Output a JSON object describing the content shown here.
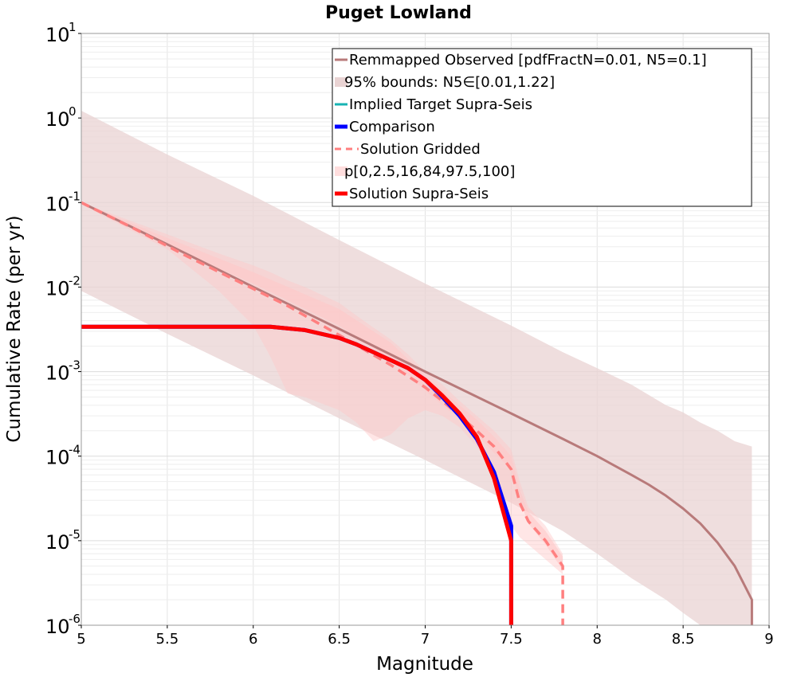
{
  "chart_data": {
    "type": "line",
    "title": "Puget Lowland",
    "xlabel": "Magnitude",
    "ylabel": "Cumulative Rate (per yr)",
    "xlim": [
      5,
      9
    ],
    "ylim": [
      1e-06,
      10
    ],
    "yscale": "log",
    "grid": true,
    "legend_position": "top-right",
    "x_ticks": [
      "5",
      "5.5",
      "6",
      "6.5",
      "7",
      "7.5",
      "8",
      "8.5",
      "9"
    ],
    "y_ticks": [
      {
        "base": "10",
        "exp": "-6"
      },
      {
        "base": "10",
        "exp": "-5"
      },
      {
        "base": "10",
        "exp": "-4"
      },
      {
        "base": "10",
        "exp": "-3"
      },
      {
        "base": "10",
        "exp": "-2"
      },
      {
        "base": "10",
        "exp": "-1"
      },
      {
        "base": "10",
        "exp": "0"
      },
      {
        "base": "10",
        "exp": "1"
      }
    ],
    "colors": {
      "observed": "#b87a7a",
      "bounds_fill": "#e9d3d3",
      "implied": "#17b3b3",
      "comparison": "#0000ff",
      "gridded": "#ff7f7f",
      "percentile_fill": "#ffc8c8",
      "supra": "#ff0000"
    },
    "legend": [
      {
        "key": "observed",
        "label": "Remmapped Observed [pdfFractN=0.01, N5=0.1]",
        "style": "line"
      },
      {
        "key": "bounds",
        "label": "95% bounds: N5∈[0.01,1.22]",
        "style": "fill"
      },
      {
        "key": "implied",
        "label": "Implied Target Supra-Seis",
        "style": "line"
      },
      {
        "key": "comparison",
        "label": "Comparison",
        "style": "thickline"
      },
      {
        "key": "gridded",
        "label": "Solution Gridded",
        "style": "dashed"
      },
      {
        "key": "percentiles",
        "label": "p[0,2.5,16,84,97.5,100]",
        "style": "fill"
      },
      {
        "key": "supra",
        "label": "Solution Supra-Seis",
        "style": "thickline"
      }
    ],
    "bounds_band": {
      "x": [
        5.0,
        5.5,
        6.0,
        6.5,
        7.0,
        7.5,
        7.8,
        8.0,
        8.2,
        8.4,
        8.5,
        8.6,
        8.7,
        8.8,
        8.9,
        8.9
      ],
      "upper": [
        1.22,
        0.37,
        0.12,
        0.036,
        0.011,
        0.0035,
        0.0017,
        0.0011,
        0.0007,
        0.0004,
        0.00033,
        0.00025,
        0.0002,
        0.00015,
        0.00013,
        1e-06
      ],
      "lower": [
        0.009,
        0.0028,
        0.0009,
        0.00028,
        9e-05,
        2.8e-05,
        1.3e-05,
        7e-06,
        3.6e-06,
        2e-06,
        1.4e-06,
        1e-06,
        1e-06,
        1e-06,
        1e-06,
        1e-06
      ]
    },
    "percentile_outer": {
      "x": [
        5.0,
        5.5,
        5.8,
        6.0,
        6.1,
        6.2,
        6.3,
        6.5,
        6.6,
        6.7,
        6.8,
        6.9,
        7.0,
        7.1,
        7.2,
        7.3,
        7.4,
        7.5,
        7.55,
        7.6,
        7.7,
        7.8
      ],
      "upper": [
        0.1,
        0.042,
        0.025,
        0.018,
        0.015,
        0.012,
        0.01,
        0.0065,
        0.0046,
        0.0033,
        0.0024,
        0.0016,
        0.001,
        0.0007,
        0.00045,
        0.0003,
        0.0002,
        0.00012,
        5e-05,
        2.5e-05,
        1.5e-05,
        7e-06
      ],
      "lower": [
        0.095,
        0.028,
        0.009,
        0.0035,
        0.0015,
        0.00055,
        0.0005,
        0.00035,
        0.00025,
        0.00015,
        0.00018,
        0.00028,
        0.00035,
        0.0003,
        0.00022,
        0.00013,
        6e-05,
        1.5e-05,
        1.1e-05,
        9e-06,
        6e-06,
        4e-06
      ]
    },
    "percentile_inner": {
      "x": [
        5.0,
        5.5,
        6.0,
        6.5,
        6.8,
        7.0,
        7.1,
        7.2,
        7.3,
        7.4,
        7.5,
        7.55,
        7.6,
        7.7,
        7.8
      ],
      "upper": [
        0.1,
        0.038,
        0.015,
        0.0055,
        0.0022,
        0.0009,
        0.0006,
        0.0004,
        0.00027,
        0.00017,
        0.0001,
        4e-05,
        2.2e-05,
        1.3e-05,
        6.5e-06
      ],
      "lower": [
        0.097,
        0.03,
        0.011,
        0.0035,
        0.0014,
        0.0006,
        0.0004,
        0.00027,
        0.00018,
        0.00011,
        7e-05,
        3e-05,
        1.6e-05,
        9e-06,
        4.5e-06
      ]
    },
    "series": [
      {
        "key": "observed",
        "name": "Remmapped Observed [pdfFractN=0.01, N5=0.1]",
        "x": [
          5.0,
          5.5,
          6.0,
          6.5,
          7.0,
          7.5,
          7.8,
          8.0,
          8.2,
          8.3,
          8.4,
          8.5,
          8.6,
          8.7,
          8.8,
          8.9,
          8.9
        ],
        "y": [
          0.1,
          0.032,
          0.01,
          0.0032,
          0.001,
          0.00032,
          0.00016,
          0.0001,
          6e-05,
          4.6e-05,
          3.4e-05,
          2.4e-05,
          1.6e-05,
          9.5e-06,
          5e-06,
          2e-06,
          1e-06
        ]
      },
      {
        "key": "gridded",
        "name": "Solution Gridded",
        "x": [
          5.0,
          5.3,
          5.6,
          5.9,
          6.2,
          6.5,
          6.8,
          7.0,
          7.1,
          7.2,
          7.3,
          7.4,
          7.5,
          7.55,
          7.6,
          7.7,
          7.8,
          7.8
        ],
        "y": [
          0.1,
          0.05,
          0.024,
          0.012,
          0.006,
          0.0027,
          0.0012,
          0.00065,
          0.00045,
          0.0003,
          0.0002,
          0.00013,
          7e-05,
          2.8e-05,
          1.7e-05,
          1e-05,
          5e-06,
          1e-06
        ]
      },
      {
        "key": "comparison",
        "name": "Comparison",
        "x": [
          5.0,
          6.1,
          6.3,
          6.5,
          6.6,
          6.9,
          7.0,
          7.1,
          7.2,
          7.3,
          7.4,
          7.5,
          7.5
        ],
        "y": [
          0.0034,
          0.0034,
          0.0031,
          0.0025,
          0.0021,
          0.0011,
          0.0008,
          0.0005,
          0.0003,
          0.00016,
          6.5e-05,
          1.5e-05,
          1e-06
        ]
      },
      {
        "key": "supra",
        "name": "Solution Supra-Seis",
        "x": [
          5.0,
          6.1,
          6.3,
          6.5,
          6.6,
          6.9,
          7.0,
          7.1,
          7.2,
          7.3,
          7.4,
          7.5,
          7.5
        ],
        "y": [
          0.0034,
          0.0034,
          0.0031,
          0.0025,
          0.0021,
          0.0011,
          0.0008,
          0.00052,
          0.00032,
          0.00017,
          5.5e-05,
          1e-05,
          1e-06
        ]
      }
    ]
  }
}
